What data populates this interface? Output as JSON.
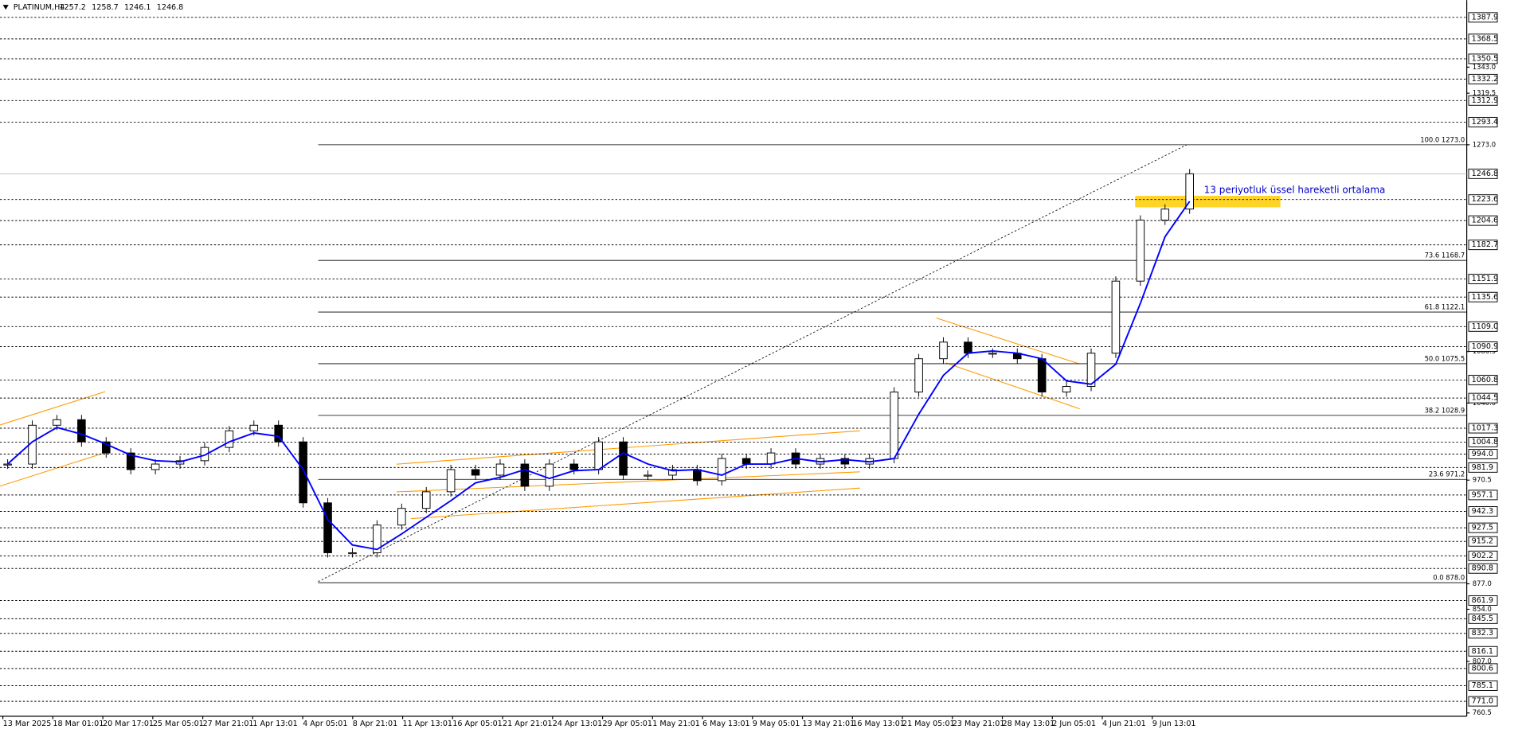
{
  "chart_data": {
    "type": "candlestick",
    "symbol": "PLATINUM,H4",
    "ohlc_header": [
      1257.2,
      1258.7,
      1246.1,
      1246.8
    ],
    "categories": [
      "13 Mar 2025",
      "18 Mar 01:01",
      "20 Mar 17:01",
      "25 Mar 05:01",
      "27 Mar 21:01",
      "1 Apr 13:01",
      "4 Apr 05:01",
      "8 Apr 21:01",
      "11 Apr 13:01",
      "16 Apr 05:01",
      "21 Apr 21:01",
      "24 Apr 13:01",
      "29 Apr 05:01",
      "1 May 21:01",
      "6 May 13:01",
      "9 May 05:01",
      "13 May 21:01",
      "16 May 13:01",
      "21 May 05:01",
      "23 May 21:01",
      "28 May 13:01",
      "2 Jun 05:01",
      "4 Jun 21:01",
      "9 Jun 13:01"
    ],
    "close": [
      985,
      1020,
      1025,
      1005,
      995,
      980,
      985,
      988,
      1000,
      1015,
      1020,
      1005,
      950,
      905,
      905,
      930,
      945,
      960,
      980,
      975,
      985,
      965,
      985,
      980,
      1005,
      975,
      975,
      980,
      970,
      990,
      985,
      995,
      985,
      990,
      985,
      990,
      1050,
      1080,
      1095,
      1085,
      1085,
      1080,
      1050,
      1055,
      1085,
      1150,
      1205,
      1215,
      1246.8
    ],
    "ema": {
      "color": "#0000ff",
      "values": [
        985,
        1005,
        1018,
        1012,
        1003,
        993,
        988,
        987,
        993,
        1005,
        1013,
        1010,
        980,
        935,
        912,
        908,
        922,
        937,
        952,
        968,
        973,
        980,
        972,
        979,
        980,
        995,
        985,
        979,
        980,
        975,
        985,
        985,
        990,
        987,
        989,
        987,
        990,
        1030,
        1065,
        1085,
        1087,
        1085,
        1080,
        1060,
        1057,
        1075,
        1130,
        1190,
        1222
      ]
    },
    "annotation": "13 periyotluk üssel hareketli ortalama",
    "current_price": 1246.8,
    "levels": [
      1387.9,
      1368.5,
      1350.5,
      1332.2,
      1312.9,
      1293.4,
      1223.6,
      1204.6,
      1182.7,
      1151.9,
      1135.6,
      {
        "value": 1109,
        "label": "1109.0"
      },
      1090.9,
      1060.8,
      1044.5,
      1017.3,
      1004.8,
      {
        "value": 994,
        "label": "994.0"
      },
      981.9,
      957.1,
      942.3,
      927.5,
      915.2,
      902.2,
      890.8,
      861.9,
      845.5,
      832.3,
      816.1,
      800.6,
      785.1,
      {
        "value": 771,
        "label": "771.0"
      }
    ],
    "fib": [
      {
        "label": "100.0 1273.0",
        "value": 1273
      },
      {
        "label": "73.6 1168.7",
        "value": 1168.7
      },
      {
        "label": "61.8 1122.1",
        "value": 1122.1
      },
      {
        "label": "50.0 1075.5",
        "value": 1075.5
      },
      {
        "label": "38.2 1028.9",
        "value": 1028.9
      },
      {
        "label": "23.6 971.2",
        "value": 971.2
      },
      {
        "label": "0.0 878.0",
        "value": 878
      }
    ],
    "ylim": [
      757.5,
      1403.5
    ],
    "yticks": [
      {
        "value": 1343,
        "label": "1343.0"
      },
      1319.5,
      {
        "value": 1273,
        "label": "1273.0"
      },
      1086.5,
      {
        "value": 1040,
        "label": "1040.0"
      },
      970.5,
      {
        "value": 877,
        "label": "877.0"
      },
      {
        "value": 854,
        "label": "854.0"
      },
      {
        "value": 807,
        "label": "807.0"
      },
      760.5
    ]
  }
}
